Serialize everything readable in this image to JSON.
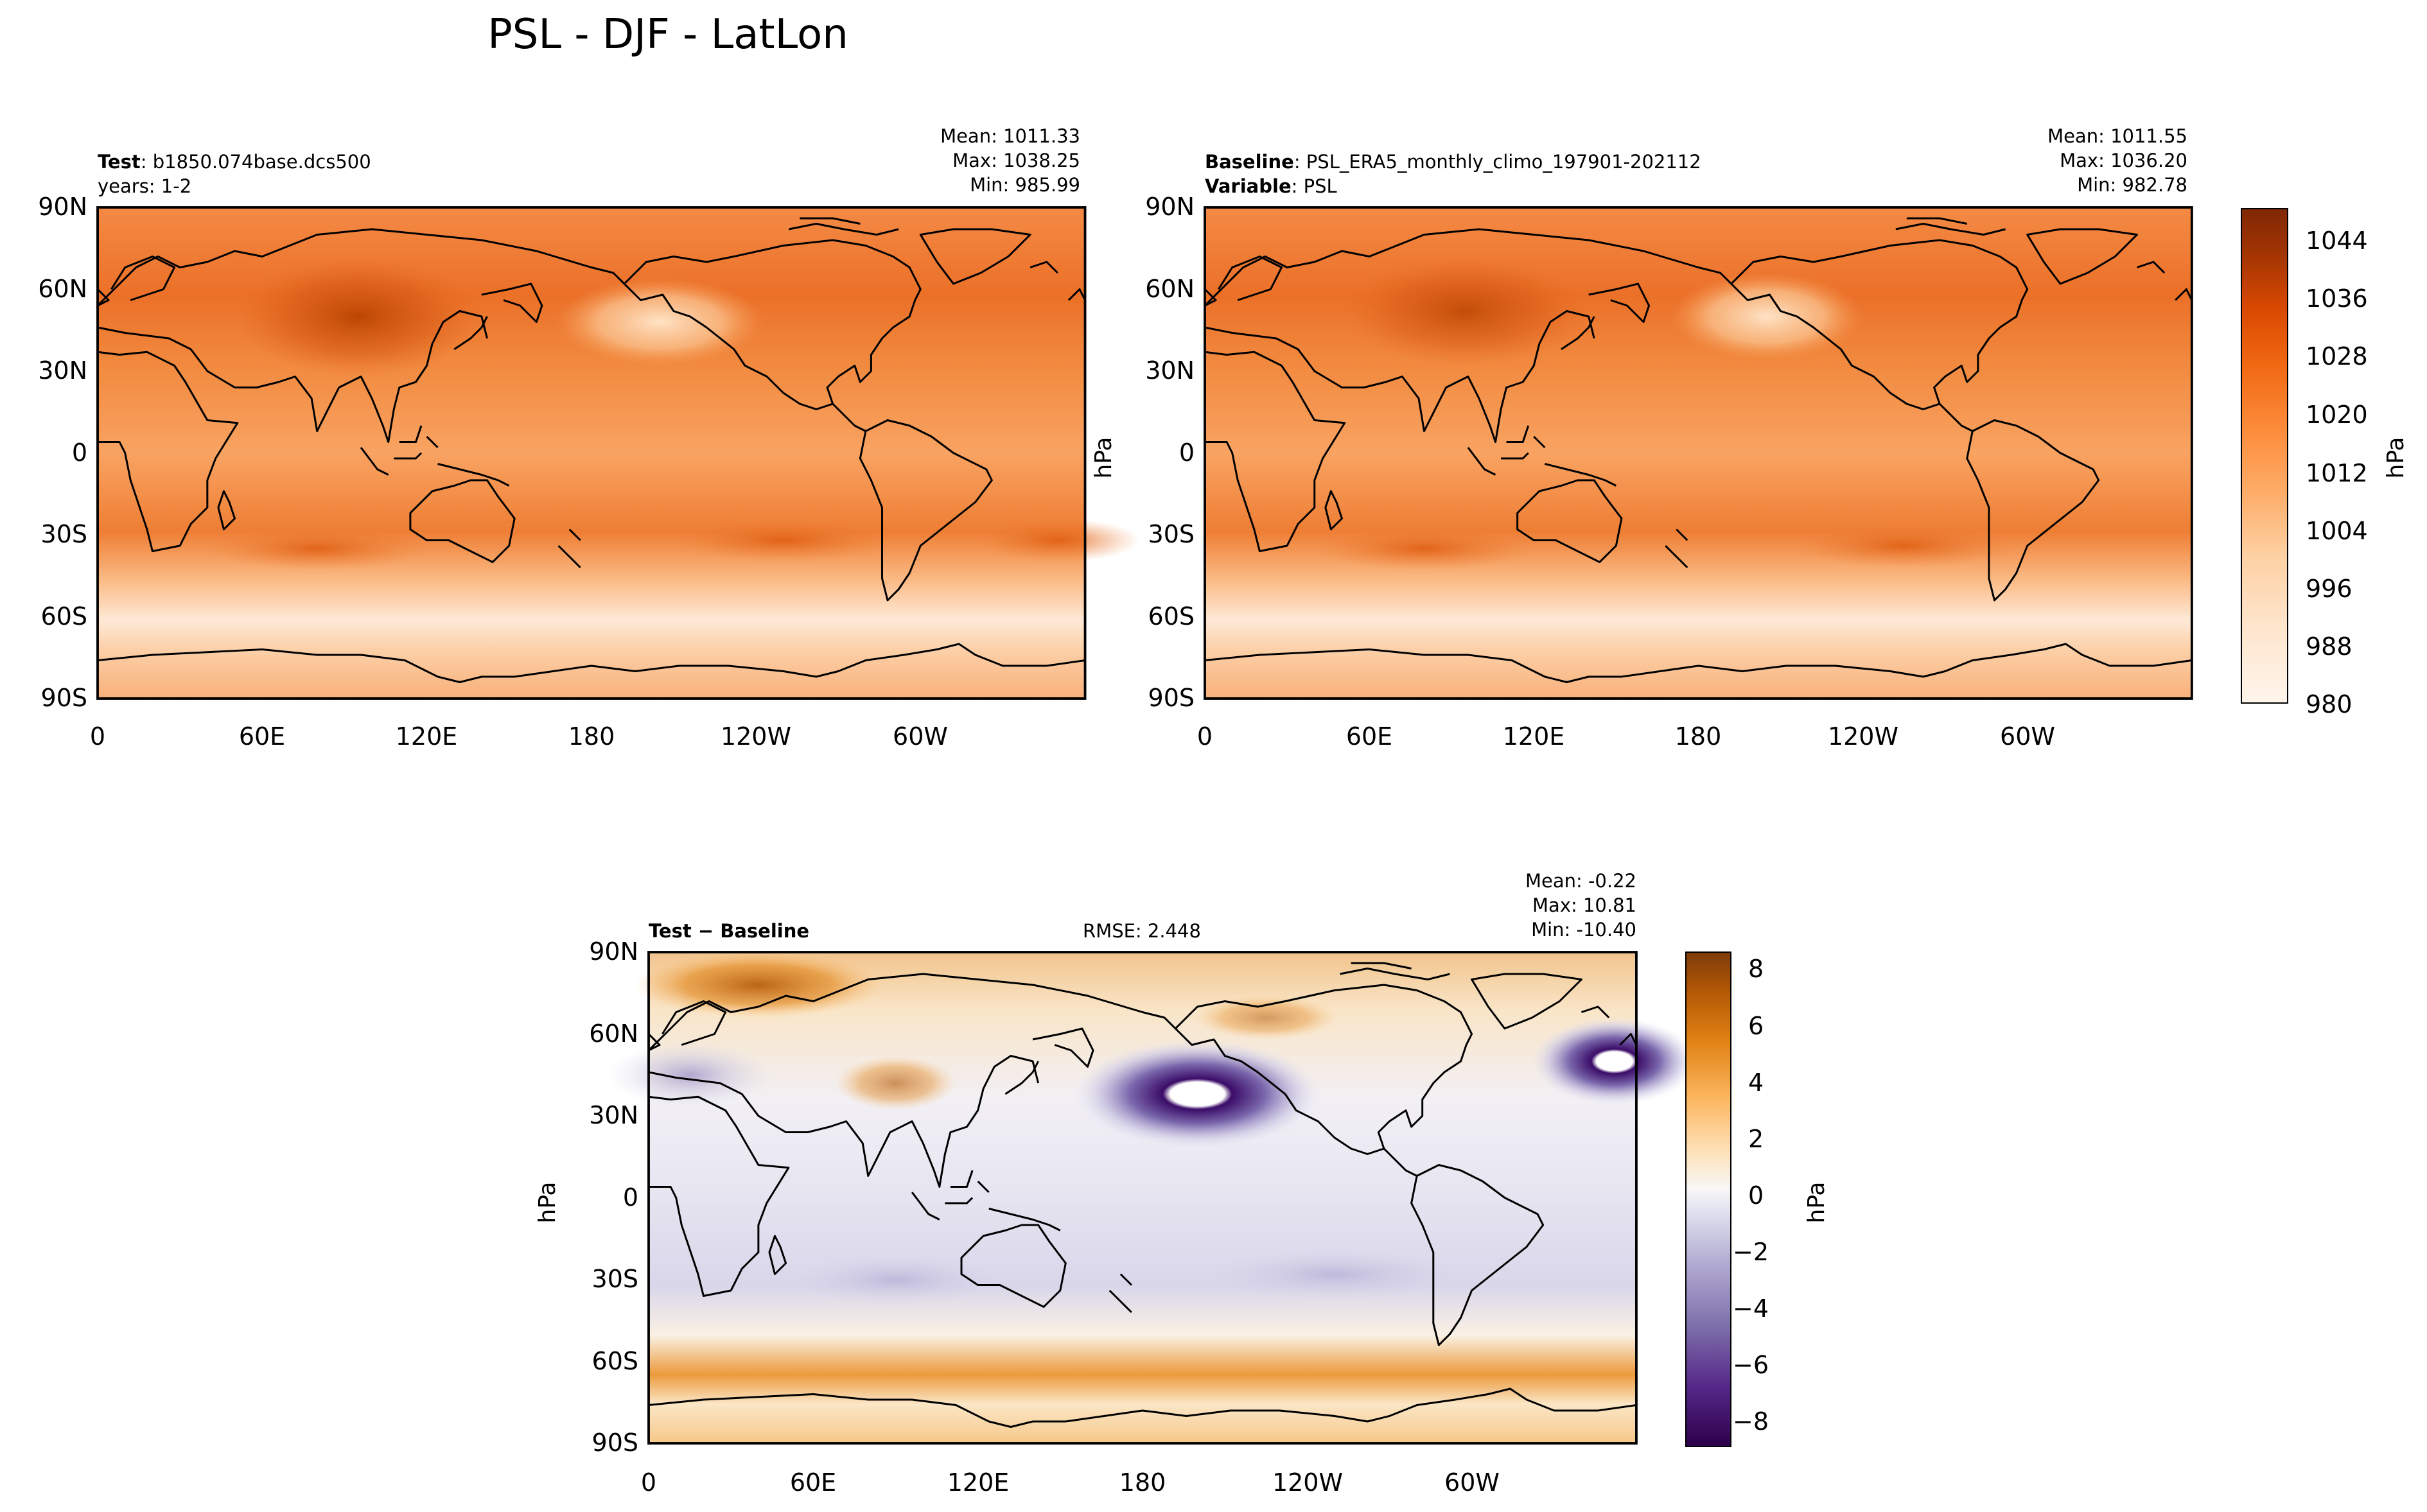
{
  "figure": {
    "title": "PSL - DJF - LatLon"
  },
  "colors": {
    "seq": [
      "#fff5eb",
      "#fee6ce",
      "#fdd0a2",
      "#fdae6b",
      "#fd8d3c",
      "#f16913",
      "#d94801",
      "#a63603",
      "#7f2704"
    ],
    "div": [
      "#2d004b",
      "#542788",
      "#8073ac",
      "#b2abd2",
      "#d8daeb",
      "#f7f7f7",
      "#fee0b6",
      "#fdb863",
      "#e08214",
      "#b35806",
      "#7f3b08"
    ],
    "land_line": "#000000"
  },
  "panels": {
    "test": {
      "label_bold": "Test",
      "label_text": ": b1850.074base.dcs500",
      "line2": "years: 1-2",
      "stats": [
        "Mean: 1011.33",
        "Max: 1038.25",
        "Min: 985.99"
      ]
    },
    "baseline": {
      "label_bold": "Baseline",
      "label_text": ": PSL_ERA5_monthly_climo_197901-202112",
      "line2_bold": "Variable",
      "line2_text": ": PSL",
      "stats": [
        "Mean: 1011.55",
        "Max: 1036.20",
        "Min: 982.78"
      ]
    },
    "diff": {
      "label": "Test − Baseline",
      "rmse": "RMSE: 2.448",
      "stats": [
        "Mean: -0.22",
        "Max: 10.81",
        "Min: -10.40"
      ]
    }
  },
  "chart_data": [
    {
      "type": "heatmap",
      "panel": "test",
      "xlabel": "",
      "ylabel": "",
      "xticks": [
        "0",
        "60E",
        "120E",
        "180",
        "120W",
        "60W"
      ],
      "yticks": [
        "90N",
        "60N",
        "30N",
        "0",
        "30S",
        "60S",
        "90S"
      ],
      "xlim": [
        0,
        360
      ],
      "ylim": [
        -90,
        90
      ],
      "stats": {
        "mean": 1011.33,
        "max": 1038.25,
        "min": 985.99
      },
      "units": "hPa"
    },
    {
      "type": "heatmap",
      "panel": "baseline",
      "xlabel": "",
      "ylabel": "hPa",
      "xticks": [
        "0",
        "60E",
        "120E",
        "180",
        "120W",
        "60W"
      ],
      "yticks": [
        "90N",
        "60N",
        "30N",
        "0",
        "30S",
        "60S",
        "90S"
      ],
      "xlim": [
        0,
        360
      ],
      "ylim": [
        -90,
        90
      ],
      "stats": {
        "mean": 1011.55,
        "max": 1036.2,
        "min": 982.78
      },
      "colorbar": {
        "label": "hPa",
        "range": [
          980,
          1048
        ],
        "ticks": [
          "1044",
          "1036",
          "1028",
          "1020",
          "1012",
          "1004",
          "996",
          "988",
          "980"
        ]
      }
    },
    {
      "type": "heatmap",
      "panel": "diff",
      "xlabel": "",
      "ylabel": "hPa",
      "xticks": [
        "0",
        "60E",
        "120E",
        "180",
        "120W",
        "60W"
      ],
      "yticks": [
        "90N",
        "60N",
        "30N",
        "0",
        "30S",
        "60S",
        "90S"
      ],
      "xlim": [
        0,
        360
      ],
      "ylim": [
        -90,
        90
      ],
      "stats": {
        "mean": -0.22,
        "max": 10.81,
        "min": -10.4,
        "rmse": 2.448
      },
      "colorbar": {
        "label": "hPa",
        "range": [
          -9,
          8.5
        ],
        "ticks": [
          "8",
          "6",
          "4",
          "2",
          "0",
          "−2",
          "−4",
          "−6",
          "−8"
        ]
      }
    }
  ]
}
